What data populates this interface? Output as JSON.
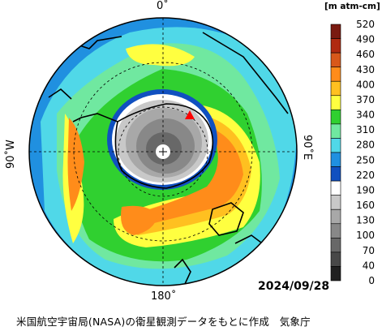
{
  "map": {
    "labels": {
      "top": "0˚",
      "bottom": "180˚",
      "left": "90˚W",
      "right": "90˚E"
    },
    "date": "2024/09/28",
    "credit": "米国航空宇宙局(NASA)の衛星観測データをもとに作成　気象庁",
    "marker_color": "#ff0000"
  },
  "legend": {
    "unit": "[m atm-cm]",
    "ticks": [
      "520",
      "490",
      "460",
      "430",
      "400",
      "370",
      "340",
      "310",
      "280",
      "250",
      "220",
      "190",
      "160",
      "130",
      "100",
      "70",
      "40",
      "0"
    ],
    "colors": [
      "#7a1a10",
      "#b02a10",
      "#d8581a",
      "#ff8c1a",
      "#ffc020",
      "#ffff40",
      "#30d030",
      "#70e8a0",
      "#50d8e8",
      "#2090e0",
      "#1050c0",
      "#ffffff",
      "#c8c8c8",
      "#a8a8a8",
      "#888888",
      "#686868",
      "#484848",
      "#202020"
    ]
  }
}
